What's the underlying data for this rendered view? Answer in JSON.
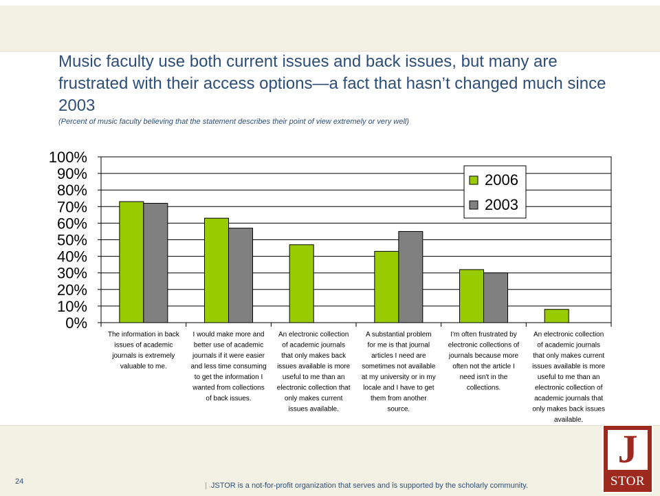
{
  "slide": {
    "title": "Music faculty use both current issues and back issues, but many are frustrated with their access options—a fact that hasn’t changed much since 2003",
    "subtitle": "(Percent of music faculty believing that the statement describes their point of view extremely or very well)",
    "slide_number": "24",
    "footer_separator": "|",
    "footer_text": "JSTOR is a not-for-profit organization that serves and is supported by the scholarly community.",
    "logo": {
      "letter": "J",
      "word": "STOR"
    }
  },
  "chart_data": {
    "type": "bar",
    "title": "",
    "xlabel": "",
    "ylabel": "",
    "ylim": [
      0,
      100
    ],
    "yticks": [
      "0%",
      "10%",
      "20%",
      "30%",
      "40%",
      "50%",
      "60%",
      "70%",
      "80%",
      "90%",
      "100%"
    ],
    "grid": true,
    "legend_position": "top-right",
    "categories": [
      "The information in back issues of academic journals is extremely valuable to me.",
      "I would make more and better use of academic journals if it were easier and less time consuming to get the information I wanted from collections of back issues.",
      "An electronic collection of academic journals that only makes back issues available is more useful to me than an electronic collection that only makes current issues available.",
      "A substantial problem for me is that journal articles I need are sometimes not available at my university or in my locale and I have to get them from another source.",
      "I'm often frustrated by electronic collections of journals because more often not the article I need isn't in the collections.",
      "An electronic collection of academic journals that only makes current issues available is more useful to me than an electronic collection of academic journals that only makes back issues available."
    ],
    "category_lines": [
      [
        "The information in back",
        "issues of academic",
        "journals is extremely",
        "valuable to me."
      ],
      [
        "I would make more and",
        "better use of academic",
        "journals if it were easier",
        "and less time consuming",
        "to get the information I",
        "wanted from collections",
        "of back issues."
      ],
      [
        "An electronic collection",
        "of academic journals",
        "that only makes back",
        "issues available is more",
        "useful to me than an",
        "electronic collection that",
        "only makes current",
        "issues available."
      ],
      [
        "A substantial problem",
        "for me is that journal",
        "articles I need are",
        "sometimes not available",
        "at my university or in my",
        "locale and I have to get",
        "them from another",
        "source."
      ],
      [
        "I'm often frustrated by",
        "electronic collections of",
        "journals because more",
        "often not the article I",
        "need isn't in the",
        "collections."
      ],
      [
        "An electronic collection",
        "of academic journals",
        "that only makes current",
        "issues available is more",
        "useful to me than an",
        "electronic collection of",
        "academic journals that",
        "only makes back issues",
        "available."
      ]
    ],
    "series": [
      {
        "name": "2006",
        "color": "#99cc00",
        "values": [
          73,
          63,
          47,
          43,
          32,
          8
        ]
      },
      {
        "name": "2003",
        "color": "#808080",
        "values": [
          72,
          57,
          null,
          55,
          30,
          null
        ]
      }
    ]
  }
}
